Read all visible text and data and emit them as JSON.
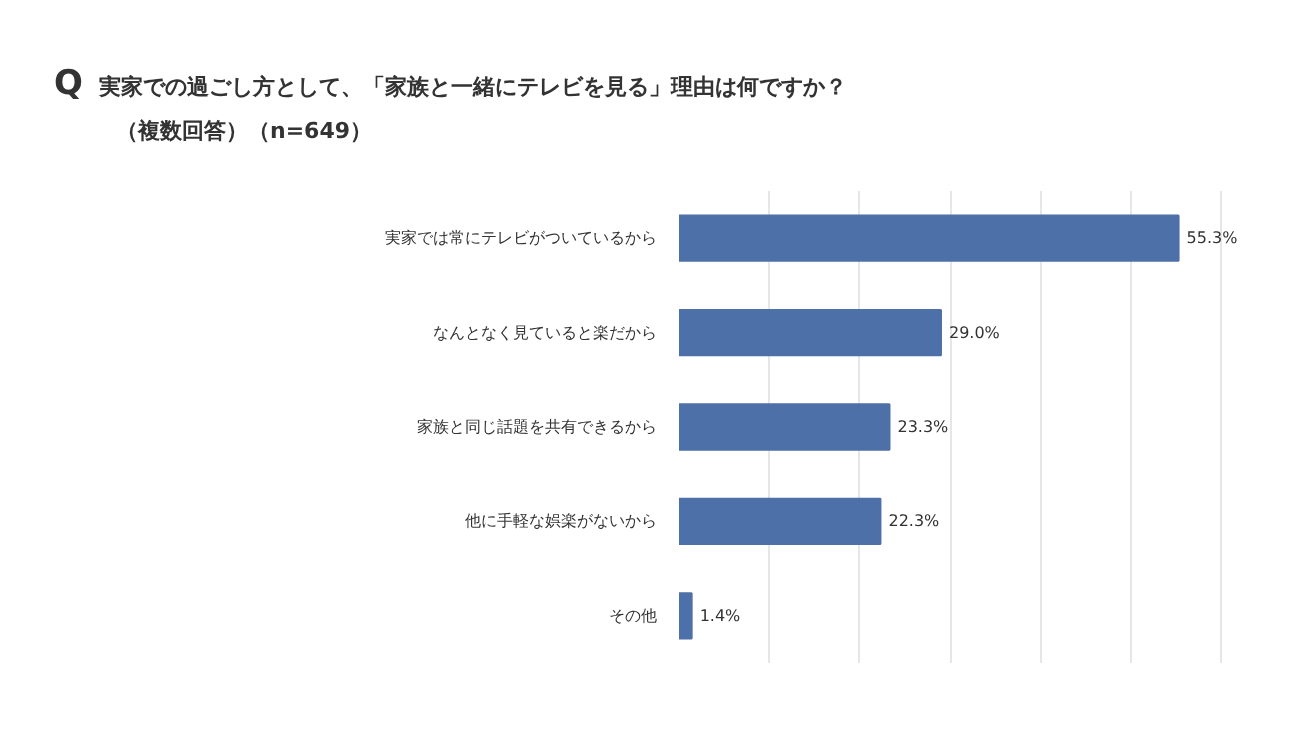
{
  "chart_data": {
    "type": "bar",
    "orientation": "horizontal",
    "title": "実家での過ごし方として、「家族と一緒にテレビを見る」理由は何ですか？",
    "subtitle": "（複数回答）（n=649）",
    "annotations": [
      "Q"
    ],
    "categories": [
      "実家では常にテレビがついているから",
      "なんとなく見ていると楽だから",
      "家族と同じ話題を共有できるから",
      "他に手軽な娯楽がないから",
      "その他"
    ],
    "values": [
      55.3,
      29.0,
      23.3,
      22.3,
      1.4
    ],
    "value_labels": [
      "55.3%",
      "29.0%",
      "23.3%",
      "22.3%",
      "1.4%"
    ],
    "color": "#4e70a8",
    "grid": "x",
    "tick_labels": "y"
  }
}
